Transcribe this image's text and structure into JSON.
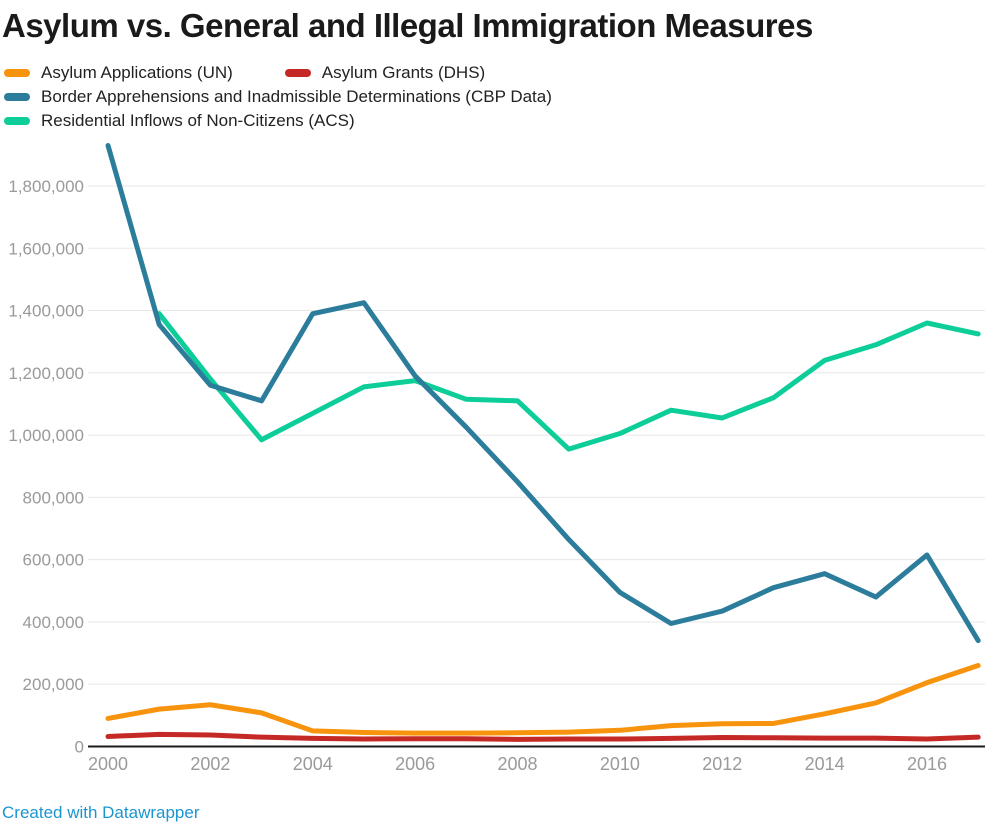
{
  "colors": {
    "title_text": "#1a1a1a",
    "legend_text": "#222222",
    "axis_tick_text": "#9a9a9a",
    "gridline": "#e7e7e7",
    "axis_line": "#1a1a1a",
    "credit_link": "#1b96d1",
    "background": "#ffffff"
  },
  "footer": {
    "credit": "Created with Datawrapper"
  },
  "chart_data": {
    "type": "line",
    "title": "Asylum vs. General and Illegal Immigration Measures",
    "xlabel": "",
    "ylabel": "",
    "grid": "horizontal-only",
    "legend_position": "top-left",
    "ylim": [
      0,
      1950000
    ],
    "x": [
      2000,
      2001,
      2002,
      2003,
      2004,
      2005,
      2006,
      2007,
      2008,
      2009,
      2010,
      2011,
      2012,
      2013,
      2014,
      2015,
      2016,
      2017
    ],
    "x_tick_years": [
      2000,
      2002,
      2004,
      2006,
      2008,
      2010,
      2012,
      2014,
      2016
    ],
    "x_tick_labels": [
      "2000",
      "2002",
      "2004",
      "2006",
      "2008",
      "2010",
      "2012",
      "2014",
      "2016"
    ],
    "y_tick_values": [
      0,
      200000,
      400000,
      600000,
      800000,
      1000000,
      1200000,
      1400000,
      1600000,
      1800000
    ],
    "y_tick_labels": [
      "0",
      "200,000",
      "400,000",
      "600,000",
      "800,000",
      "1,000,000",
      "1,200,000",
      "1,400,000",
      "1,600,000",
      "1,800,000"
    ],
    "z_order": [
      3,
      2,
      0,
      1
    ],
    "series": [
      {
        "name": "Asylum Applications (UN)",
        "color": "#f7930d",
        "values": [
          90000,
          120000,
          134000,
          108000,
          50000,
          45000,
          43000,
          43000,
          44000,
          46000,
          52000,
          67000,
          73000,
          74000,
          105000,
          140000,
          205000,
          260000
        ]
      },
      {
        "name": "Asylum Grants (DHS)",
        "color": "#c52926",
        "values": [
          32000,
          39000,
          37000,
          30000,
          26000,
          24000,
          25000,
          25000,
          23000,
          24000,
          24000,
          26000,
          29000,
          28000,
          27000,
          27000,
          24000,
          30000
        ]
      },
      {
        "name": "Border Apprehensions and Inadmissible Determinations (CBP Data)",
        "color": "#2c7d9b",
        "values": [
          1930000,
          1355000,
          1160000,
          1110000,
          1390000,
          1425000,
          1190000,
          1025000,
          850000,
          665000,
          495000,
          395000,
          435000,
          510000,
          555000,
          480000,
          615000,
          340000
        ]
      },
      {
        "name": "Residential Inflows of Non-Citizens (ACS)",
        "color": "#0dce98",
        "values": [
          null,
          1390000,
          1180000,
          985000,
          1070000,
          1155000,
          1175000,
          1115000,
          1110000,
          955000,
          1005000,
          1080000,
          1055000,
          1120000,
          1240000,
          1290000,
          1360000,
          1325000
        ]
      }
    ]
  }
}
